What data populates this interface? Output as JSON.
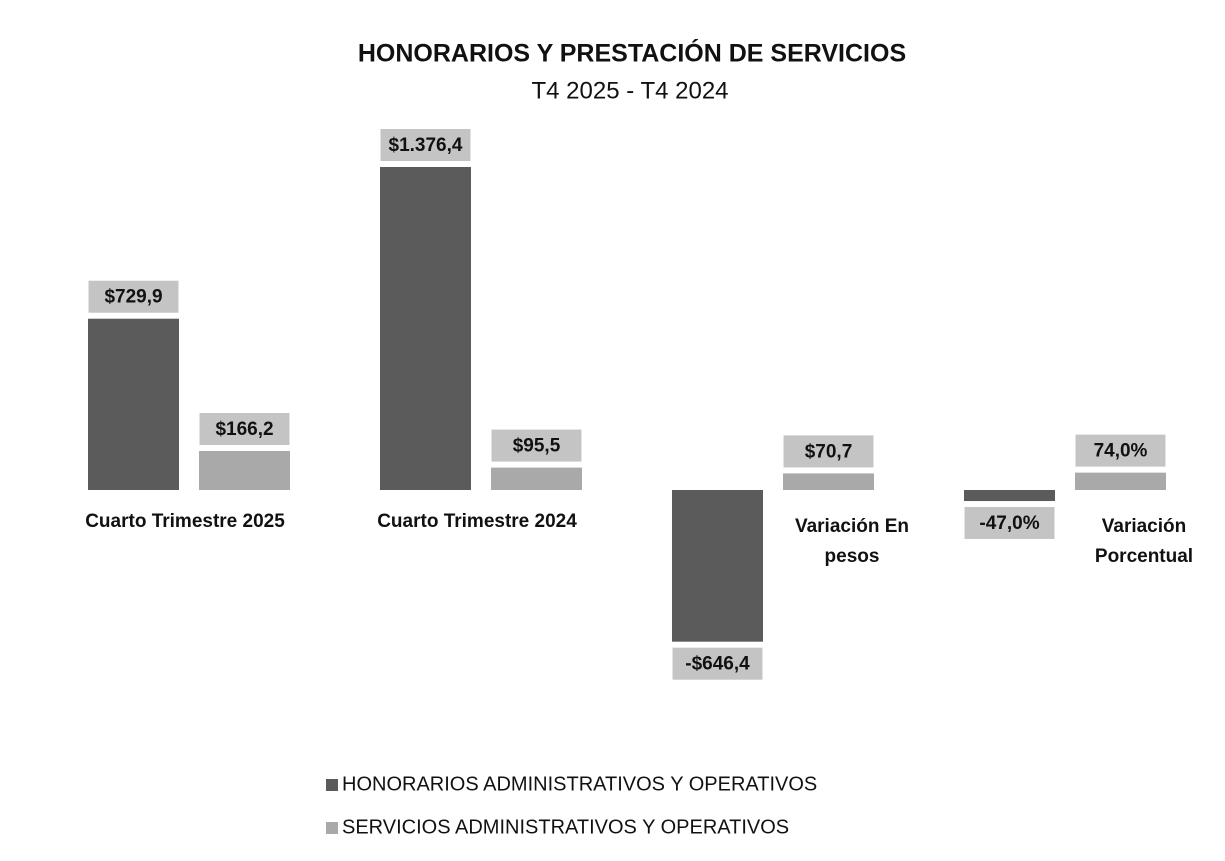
{
  "chart_data": {
    "type": "bar",
    "title": "HONORARIOS Y PRESTACIÓN DE SERVICIOS",
    "subtitle": "T4 2025 - T4 2024",
    "categories": [
      "Cuarto Trimestre 2025",
      "Cuarto Trimestre 2024",
      "Variación En pesos",
      "Variación Porcentual"
    ],
    "series": [
      {
        "name": "HONORARIOS ADMINISTRATIVOS Y OPERATIVOS",
        "color": "#5b5b5b",
        "values": [
          729.9,
          1376.4,
          -646.4,
          -47.0
        ],
        "value_labels": [
          "$729,9",
          "$1.376,4",
          "-$646,4",
          "-47,0%"
        ]
      },
      {
        "name": "SERVICIOS ADMINISTRATIVOS Y OPERATIVOS",
        "color": "#a9a9a9",
        "values": [
          166.2,
          95.5,
          70.7,
          74.0
        ],
        "value_labels": [
          "$166,2",
          "$95,5",
          "$70,7",
          "74,0%"
        ]
      }
    ]
  }
}
